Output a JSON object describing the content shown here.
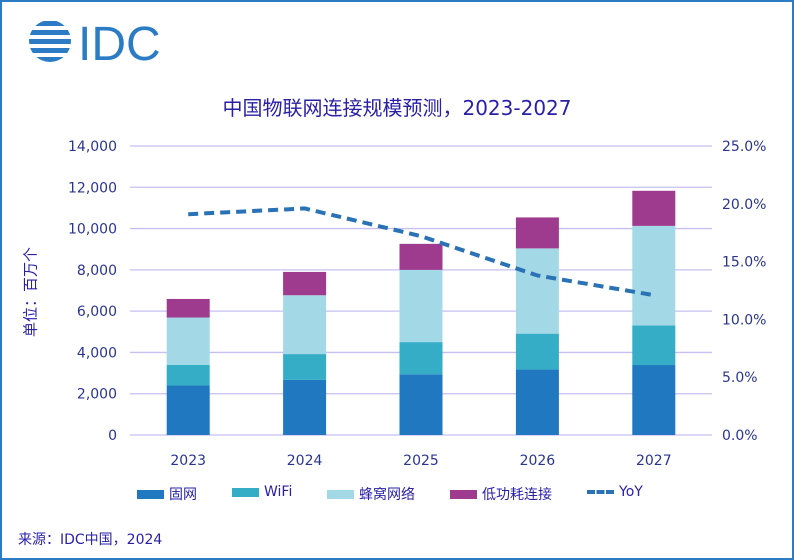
{
  "logo_text": "IDC",
  "chart_data": {
    "type": "bar",
    "stacked": true,
    "title": "中国物联网连接规模预测，2023-2027",
    "ylabel": "单位：百万个",
    "categories": [
      "2023",
      "2024",
      "2025",
      "2026",
      "2027"
    ],
    "ylim": [
      0,
      14000
    ],
    "y_ticks": [
      "0",
      "2,000",
      "4,000",
      "6,000",
      "8,000",
      "10,000",
      "12,000",
      "14,000"
    ],
    "y2lim": [
      0,
      25
    ],
    "y2_ticks": [
      "0.0%",
      "5.0%",
      "10.0%",
      "15.0%",
      "20.0%",
      "25.0%"
    ],
    "grid": true,
    "legend_position": "bottom",
    "series": [
      {
        "name": "固网",
        "values": [
          2400,
          2670,
          2940,
          3170,
          3390
        ],
        "color": "#2079c0"
      },
      {
        "name": "WiFi",
        "values": [
          990,
          1250,
          1560,
          1740,
          1920
        ],
        "color": "#35adc6"
      },
      {
        "name": "蜂窝网络",
        "values": [
          2300,
          2850,
          3500,
          4130,
          4820
        ],
        "color": "#a3d9e6"
      },
      {
        "name": "低功耗连接",
        "values": [
          900,
          1130,
          1260,
          1500,
          1700
        ],
        "color": "#9e3b8e"
      }
    ],
    "line_series": {
      "name": "YoY",
      "axis": "right",
      "values": [
        19.1,
        19.6,
        17.2,
        13.8,
        12.1
      ],
      "color": "#2a72b5",
      "style": "dashed"
    }
  },
  "source": "来源：IDC中国，2024"
}
